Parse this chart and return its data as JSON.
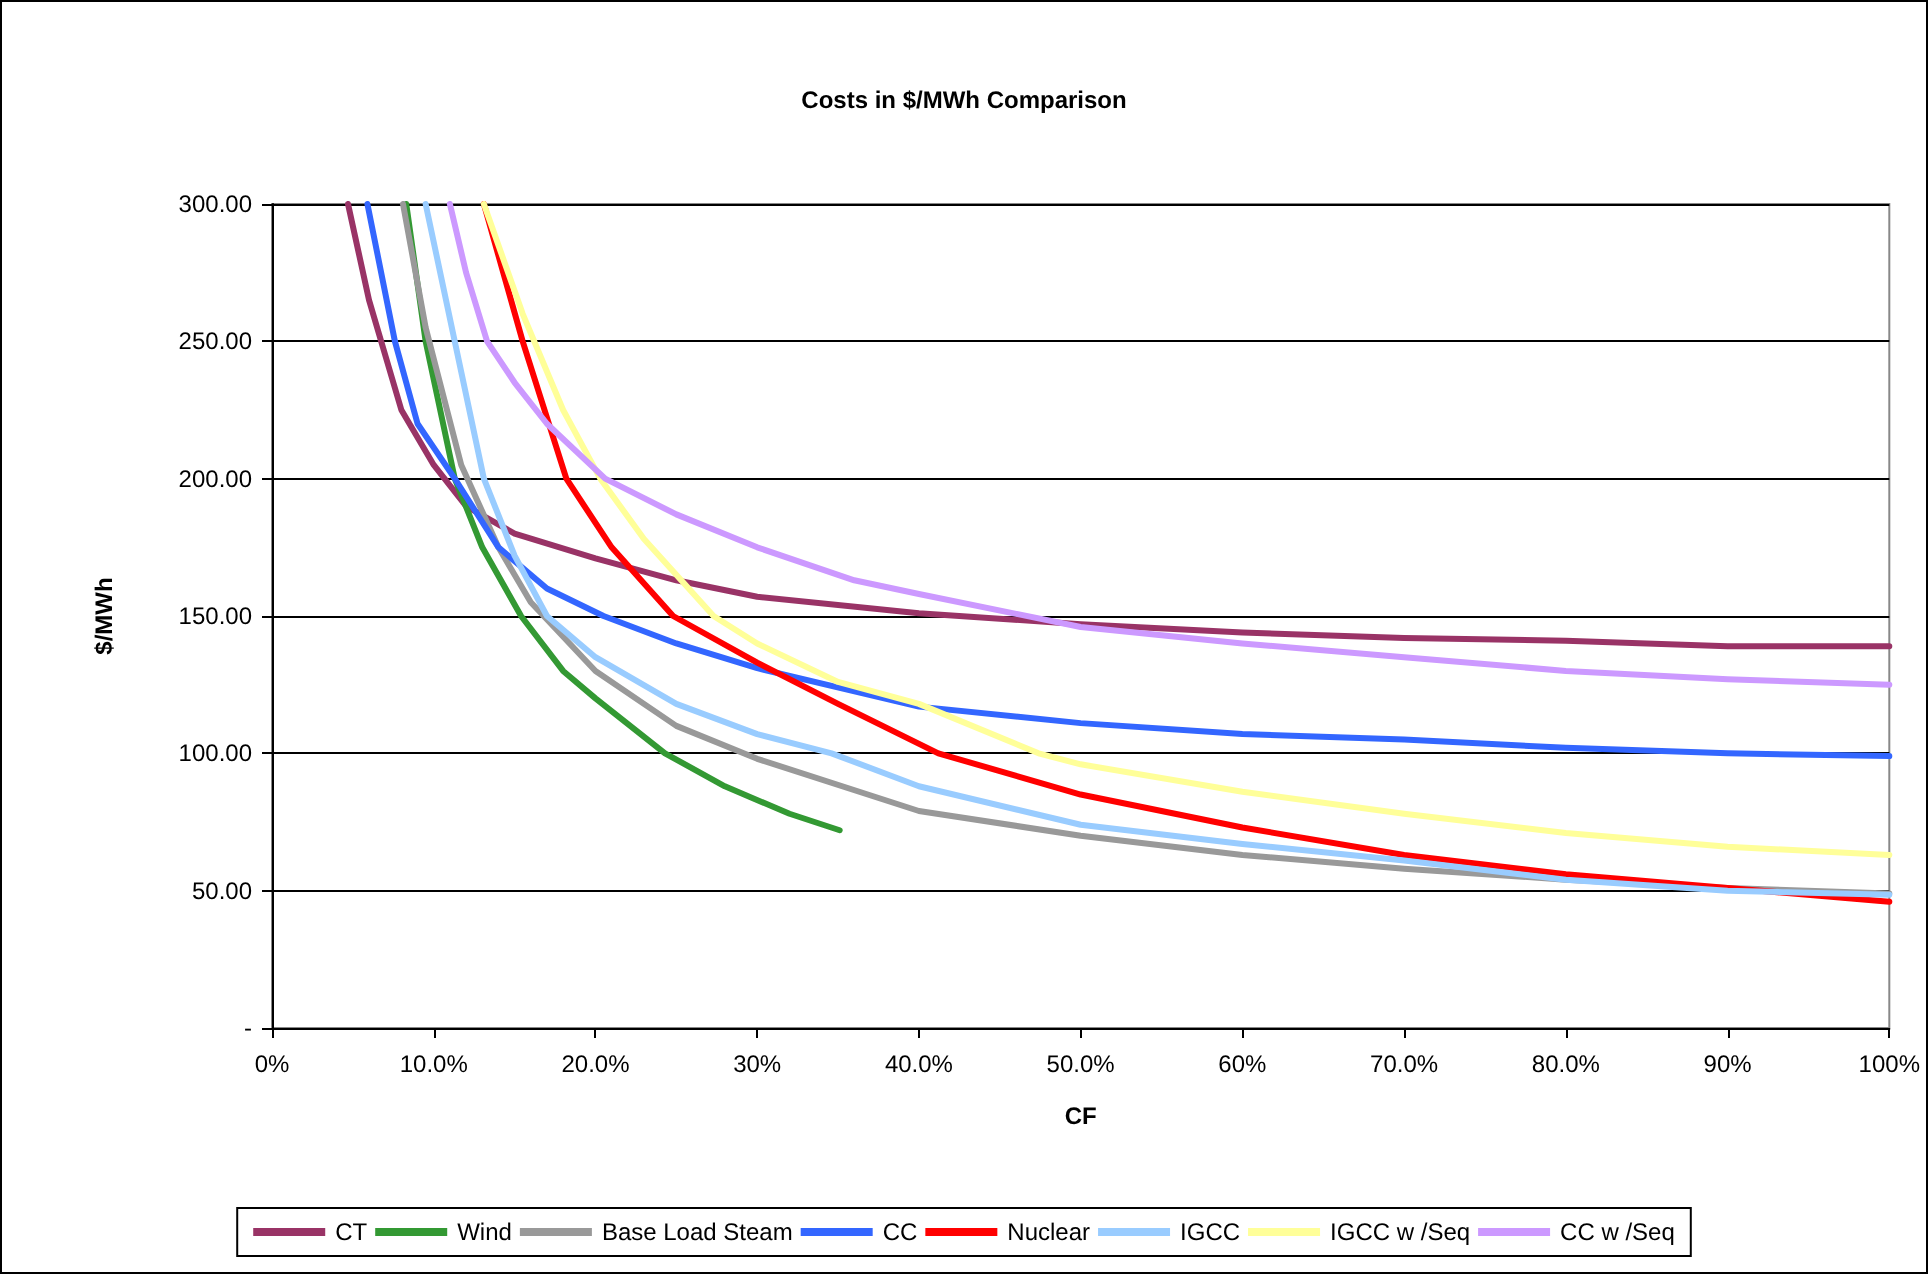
{
  "chart_data": {
    "type": "line",
    "title": "Costs in $/MWh Comparison",
    "xlabel": "CF",
    "ylabel": "$/MWh",
    "xlim": [
      0,
      100
    ],
    "xticks": [
      {
        "value": 0,
        "label": "0%"
      },
      {
        "value": 10,
        "label": "10.0%"
      },
      {
        "value": 20,
        "label": "20.0%"
      },
      {
        "value": 30,
        "label": "30%"
      },
      {
        "value": 40,
        "label": "40.0%"
      },
      {
        "value": 50,
        "label": "50.0%"
      },
      {
        "value": 60,
        "label": "60%"
      },
      {
        "value": 70,
        "label": "70.0%"
      },
      {
        "value": 80,
        "label": "80.0%"
      },
      {
        "value": 90,
        "label": "90%"
      },
      {
        "value": 100,
        "label": "100%"
      }
    ],
    "ylim": [
      0,
      300
    ],
    "yticks": [
      {
        "value": 0,
        "label": "-"
      },
      {
        "value": 50,
        "label": "50.00"
      },
      {
        "value": 100,
        "label": "100.00"
      },
      {
        "value": 150,
        "label": "150.00"
      },
      {
        "value": 200,
        "label": "200.00"
      },
      {
        "value": 250,
        "label": "250.00"
      },
      {
        "value": 300,
        "label": "300.00"
      }
    ],
    "grid": "y",
    "legend": "bottom",
    "marker": "none",
    "line_style": "solid",
    "series": [
      {
        "name": "CT",
        "color": "#993366",
        "x": [
          4.7,
          6,
          8,
          10,
          12,
          15,
          20,
          25,
          30,
          40,
          50,
          60,
          70,
          80,
          90,
          100
        ],
        "values": [
          300,
          265,
          225,
          205,
          190,
          180,
          171,
          163,
          157,
          151,
          147,
          144,
          142,
          141,
          139,
          139
        ]
      },
      {
        "name": "Wind",
        "color": "#339933",
        "x": [
          8.3,
          9.5,
          11.3,
          13,
          15.4,
          18,
          20,
          24.3,
          28,
          32,
          35.1
        ],
        "values": [
          300,
          250,
          200,
          175,
          150,
          130,
          120,
          100,
          88,
          78,
          72
        ]
      },
      {
        "name": "Base Load Steam",
        "color": "#999999",
        "x": [
          8.1,
          9.5,
          11.7,
          14,
          16,
          20,
          25,
          30,
          40,
          50,
          60,
          70,
          80,
          90,
          100
        ],
        "values": [
          300,
          255,
          205,
          175,
          155,
          130,
          110,
          98,
          79,
          70,
          63,
          58,
          54,
          51,
          49
        ]
      },
      {
        "name": "CC",
        "color": "#3366ff",
        "x": [
          5.9,
          7.6,
          9,
          11.3,
          14,
          17,
          20.5,
          25,
          30,
          40,
          50,
          60,
          70,
          80,
          90,
          100
        ],
        "values": [
          300,
          250,
          220,
          200,
          175,
          160,
          150,
          140,
          131,
          117,
          111,
          107,
          105,
          102,
          100,
          99
        ]
      },
      {
        "name": "Nuclear",
        "color": "#ff0000",
        "x": [
          13.1,
          15.5,
          18.2,
          21,
          24.8,
          30,
          35,
          41.2,
          50,
          60,
          70,
          80,
          90,
          100
        ],
        "values": [
          300,
          250,
          200,
          175,
          150,
          133,
          118,
          100,
          85,
          73,
          63,
          56,
          51,
          46
        ]
      },
      {
        "name": "IGCC",
        "color": "#99ccff",
        "x": [
          9.5,
          11.3,
          13.1,
          15,
          17,
          20,
          25,
          30,
          34.6,
          40,
          50,
          60,
          70,
          80,
          90,
          100
        ],
        "values": [
          300,
          250,
          200,
          172,
          150,
          135,
          118,
          107,
          100,
          88,
          74,
          67,
          61,
          54,
          50,
          48.5
        ]
      },
      {
        "name": "IGCC w /Seq",
        "color": "#ffff99",
        "x": [
          13.1,
          15.5,
          18,
          20.3,
          23,
          27.3,
          30,
          35,
          40,
          47.4,
          50,
          60,
          70,
          80,
          90,
          100
        ],
        "values": [
          300,
          260,
          225,
          200,
          178,
          150,
          140,
          126,
          118,
          100,
          96,
          86,
          78,
          71,
          66,
          63
        ]
      },
      {
        "name": "CC w /Seq",
        "color": "#cc99ff",
        "x": [
          11,
          12,
          13.3,
          15,
          17,
          20.6,
          25,
          30,
          36,
          40,
          50,
          60,
          70,
          80,
          90,
          100
        ],
        "values": [
          300,
          275,
          250,
          235,
          220,
          200,
          187,
          175,
          163,
          158,
          146,
          140,
          135,
          130,
          127,
          125
        ]
      }
    ]
  }
}
